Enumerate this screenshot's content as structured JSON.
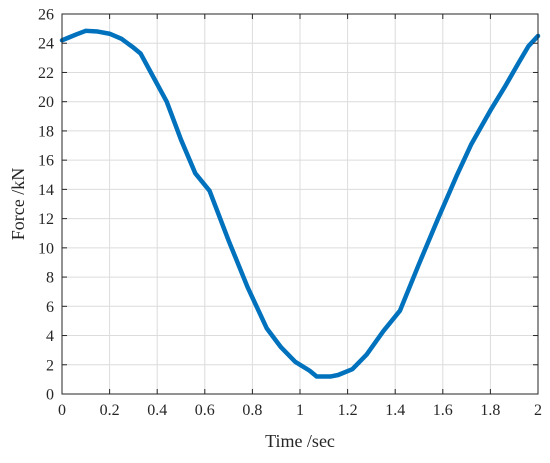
{
  "chart_data": {
    "type": "line",
    "title": "",
    "xlabel": "Time /sec",
    "ylabel": "Force /kN",
    "xlim": [
      0,
      2
    ],
    "ylim": [
      0,
      26
    ],
    "grid": true,
    "legend": "none",
    "x_ticks": [
      "0",
      "0.2",
      "0.4",
      "0.6",
      "0.8",
      "1",
      "1.2",
      "1.4",
      "1.6",
      "1.8",
      "2"
    ],
    "y_ticks": [
      "0",
      "2",
      "4",
      "6",
      "8",
      "10",
      "12",
      "14",
      "16",
      "18",
      "20",
      "22",
      "24",
      "26"
    ],
    "series": [
      {
        "color": "#0072BD",
        "x": [
          0,
          0.03,
          0.06,
          0.1,
          0.15,
          0.2,
          0.25,
          0.3,
          0.33,
          0.38,
          0.44,
          0.5,
          0.56,
          0.62,
          0.7,
          0.78,
          0.86,
          0.92,
          0.98,
          1.04,
          1.07,
          1.1,
          1.13,
          1.16,
          1.22,
          1.28,
          1.35,
          1.42,
          1.5,
          1.58,
          1.66,
          1.72,
          1.8,
          1.86,
          1.92,
          1.96,
          2.0
        ],
        "y": [
          24.2,
          24.4,
          24.6,
          24.85,
          24.8,
          24.65,
          24.3,
          23.7,
          23.3,
          21.8,
          20.0,
          17.4,
          15.1,
          13.9,
          10.5,
          7.3,
          4.5,
          3.2,
          2.2,
          1.6,
          1.2,
          1.2,
          1.2,
          1.3,
          1.7,
          2.7,
          4.3,
          5.7,
          8.9,
          12.0,
          15.0,
          17.1,
          19.4,
          21.0,
          22.7,
          23.8,
          24.5
        ]
      }
    ]
  }
}
